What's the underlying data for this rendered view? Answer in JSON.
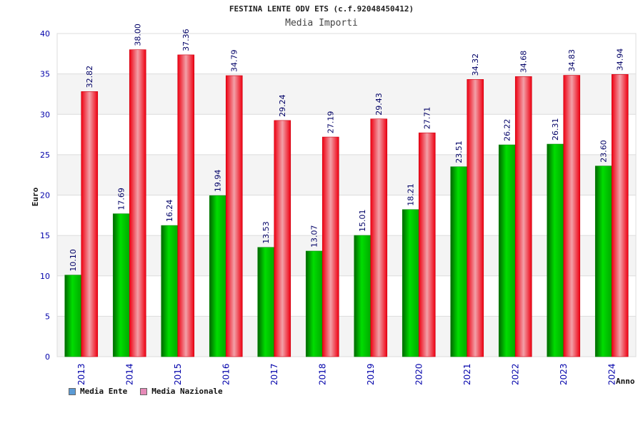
{
  "chart_data": {
    "type": "bar",
    "title": "FESTINA LENTE ODV ETS (c.f.92048450412)",
    "subtitle": "Media Importi",
    "xlabel": "Anno",
    "ylabel": "Euro",
    "ylim": [
      0,
      40
    ],
    "yticks": [
      "0",
      "5",
      "10",
      "15",
      "20",
      "25",
      "30",
      "35",
      "40"
    ],
    "categories": [
      "2013",
      "2014",
      "2015",
      "2016",
      "2017",
      "2018",
      "2019",
      "2020",
      "2021",
      "2022",
      "2023",
      "2024"
    ],
    "series": [
      {
        "name": "Media Ente",
        "values": [
          10.1,
          17.69,
          16.24,
          19.94,
          13.53,
          13.07,
          15.01,
          18.21,
          23.51,
          26.22,
          26.31,
          23.6
        ],
        "labels": [
          "10.10",
          "17.69",
          "16.24",
          "19.94",
          "13.53",
          "13.07",
          "15.01",
          "18.21",
          "23.51",
          "26.22",
          "26.31",
          "23.60"
        ],
        "color": "#00aa00",
        "legend_color": "#5b9bd5"
      },
      {
        "name": "Media Nazionale",
        "values": [
          32.82,
          38.0,
          37.36,
          34.79,
          29.24,
          27.19,
          29.43,
          27.71,
          34.32,
          34.68,
          34.83,
          34.94
        ],
        "labels": [
          "32.82",
          "38.00",
          "37.36",
          "34.79",
          "29.24",
          "27.19",
          "29.43",
          "27.71",
          "34.32",
          "34.68",
          "34.83",
          "34.94"
        ],
        "color": "#ee1122",
        "legend_color": "#e68ab8"
      }
    ],
    "grid": true,
    "legend_position": "bottom-left"
  },
  "colors": {
    "band_light": "#f4f4f4",
    "band_white": "#ffffff",
    "axis_text": "#0000aa"
  }
}
